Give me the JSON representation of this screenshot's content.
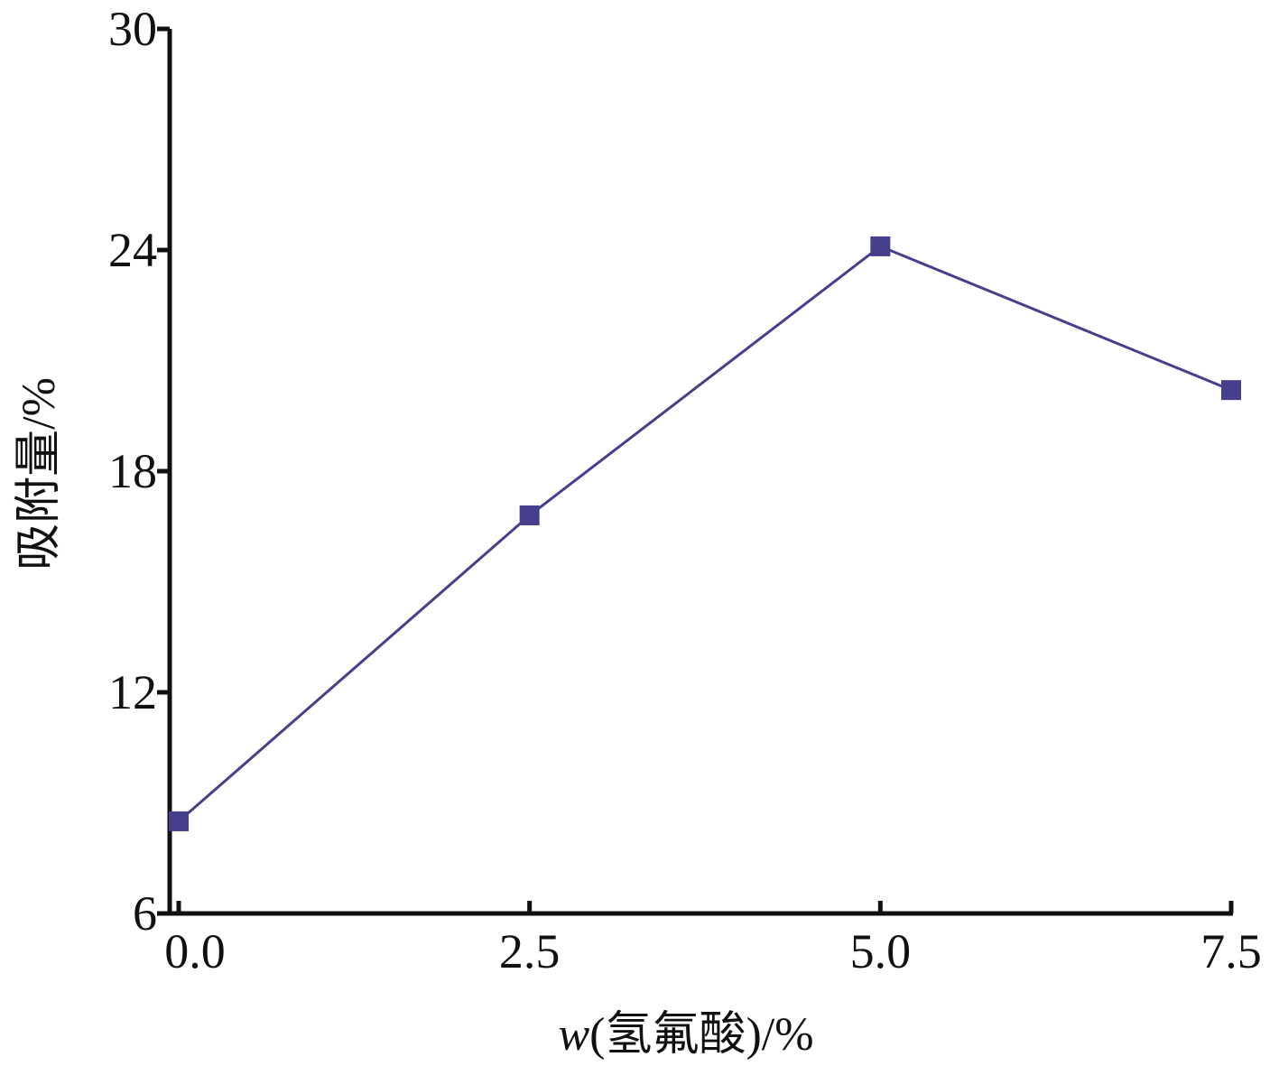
{
  "chart_data": {
    "type": "line",
    "xlabel": "w(氢氟酸)/%",
    "ylabel": "吸附量/%",
    "x": [
      0.0,
      2.5,
      5.0,
      7.5
    ],
    "series": [
      {
        "values": [
          8.5,
          16.8,
          24.1,
          20.2
        ],
        "color": "#463f8c",
        "marker": "square"
      }
    ],
    "xlim": [
      0.0,
      7.5
    ],
    "ylim": [
      6,
      30
    ],
    "x_ticks": [
      0.0,
      2.5,
      5.0,
      7.5
    ],
    "x_tick_labels": [
      "0.0",
      "2.5",
      "5.0",
      "7.5"
    ],
    "y_ticks": [
      6,
      12,
      18,
      24,
      30
    ],
    "y_tick_labels": [
      "6",
      "12",
      "18",
      "24",
      "30"
    ],
    "grid": false,
    "legend": "none",
    "axis_color": "#111111"
  }
}
